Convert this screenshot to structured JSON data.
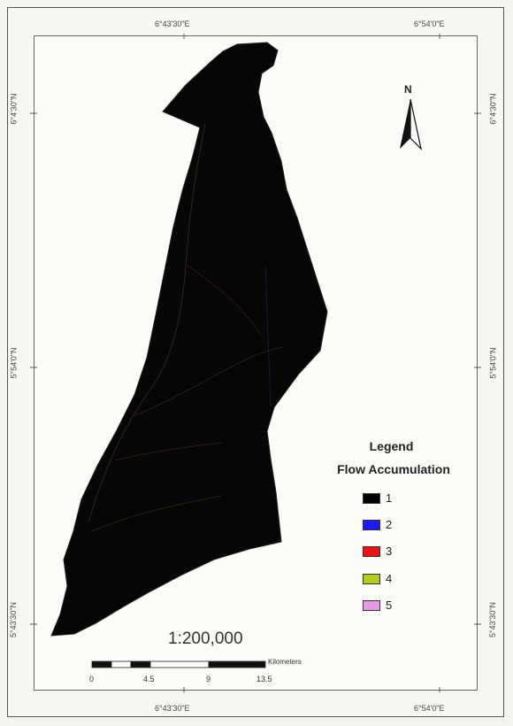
{
  "graticule": {
    "top_left": "6°43'30\"E",
    "top_right": "6°54'0\"E",
    "bottom_left": "6°43'30\"E",
    "bottom_right": "6°54'0\"E",
    "left_top": "6°4'30\"N",
    "left_mid": "5°54'0\"N",
    "left_bottom": "5°43'30\"N",
    "right_top": "6°4'30\"N",
    "right_mid": "5°54'0\"N",
    "right_bottom": "5°43'30\"N"
  },
  "north_arrow": {
    "label": "N",
    "icon": "north-arrow-icon"
  },
  "legend": {
    "title": "Legend",
    "subtitle": "Flow Accumulation",
    "items": [
      {
        "label": "1",
        "color": "#000000"
      },
      {
        "label": "2",
        "color": "#1a1aff"
      },
      {
        "label": "3",
        "color": "#ee1111"
      },
      {
        "label": "4",
        "color": "#b5cc1a"
      },
      {
        "label": "5",
        "color": "#e79ae7"
      }
    ]
  },
  "scale": {
    "ratio": "1:200,000",
    "ticks": [
      "0",
      "4.5",
      "9",
      "13.5"
    ],
    "units": "Kilometers"
  },
  "colors": {
    "map_fill": "#060606",
    "frame": "#555555",
    "background": "#f7f7f3"
  }
}
